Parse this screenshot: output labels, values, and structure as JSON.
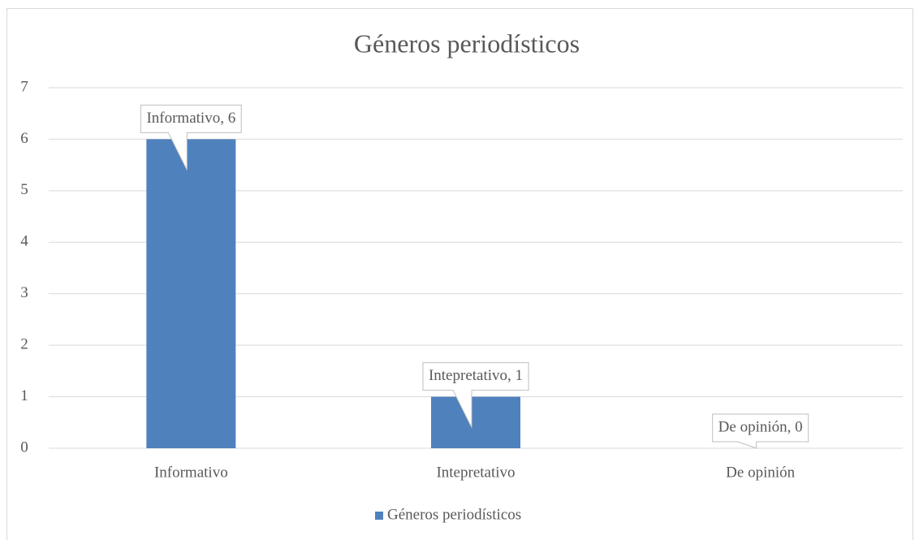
{
  "chart_data": {
    "type": "bar",
    "title": "Géneros periodísticos",
    "categories": [
      "Informativo",
      "Intepretativo",
      "De opinión"
    ],
    "series": [
      {
        "name": "Géneros periodísticos",
        "color": "#4f81bd",
        "values": [
          6,
          1,
          0
        ],
        "value_labels": [
          "Informativo, 6",
          "Intepretativo, 1",
          "De opinión, 0"
        ]
      }
    ],
    "ylim": [
      0,
      7
    ],
    "yticks": [
      0,
      1,
      2,
      3,
      4,
      5,
      6,
      7
    ],
    "grid": true,
    "legend": "bottom"
  }
}
